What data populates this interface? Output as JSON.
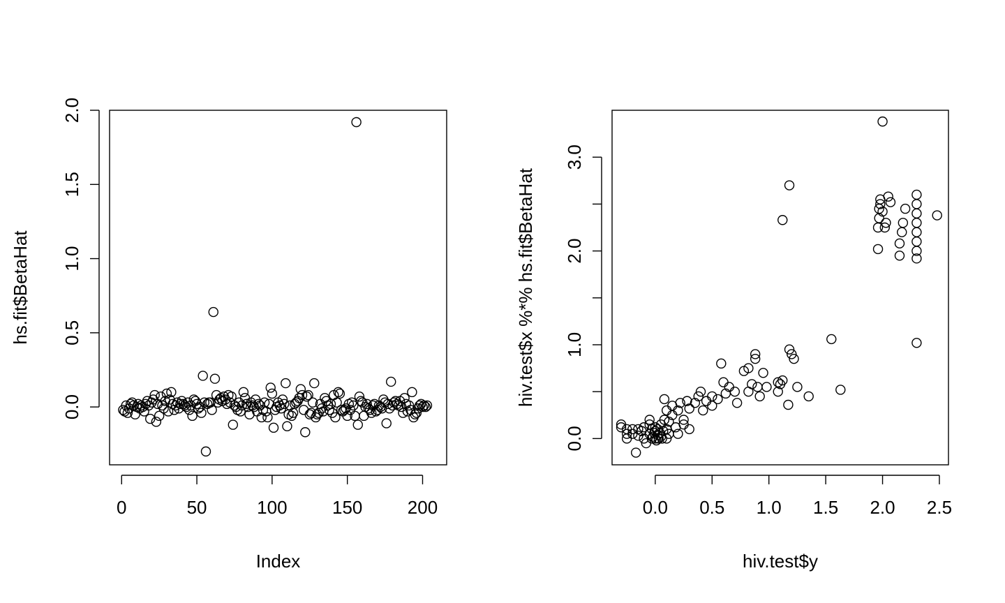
{
  "chart_data": [
    {
      "type": "scatter",
      "xlabel": "Index",
      "ylabel": "hs.fit$BetaHat",
      "xlim": [
        -8,
        216
      ],
      "ylim": [
        -0.39,
        2.0
      ],
      "xticks": [
        0,
        50,
        100,
        150,
        200
      ],
      "xtick_labels": [
        "0",
        "50",
        "100",
        "150",
        "200"
      ],
      "yticks": [
        0.0,
        0.5,
        1.0,
        1.5,
        2.0
      ],
      "ytick_labels": [
        "0.0",
        "0.5",
        "1.0",
        "1.5",
        "2.0"
      ],
      "marker": "open-circle",
      "grid": false,
      "points": [
        [
          1,
          -0.02
        ],
        [
          2,
          -0.03
        ],
        [
          3,
          0.01
        ],
        [
          4,
          -0.04
        ],
        [
          5,
          -0.01
        ],
        [
          6,
          0.02
        ],
        [
          7,
          0.03
        ],
        [
          8,
          0.01
        ],
        [
          9,
          -0.05
        ],
        [
          10,
          0.0
        ],
        [
          11,
          0.02
        ],
        [
          12,
          -0.01
        ],
        [
          13,
          0.01
        ],
        [
          14,
          0.0
        ],
        [
          15,
          -0.03
        ],
        [
          16,
          0.02
        ],
        [
          17,
          0.04
        ],
        [
          18,
          0.01
        ],
        [
          19,
          -0.08
        ],
        [
          20,
          0.03
        ],
        [
          21,
          0.05
        ],
        [
          22,
          0.08
        ],
        [
          23,
          -0.1
        ],
        [
          24,
          0.02
        ],
        [
          25,
          -0.06
        ],
        [
          26,
          0.07
        ],
        [
          27,
          0.01
        ],
        [
          28,
          -0.01
        ],
        [
          29,
          0.04
        ],
        [
          30,
          0.09
        ],
        [
          31,
          -0.03
        ],
        [
          32,
          0.05
        ],
        [
          33,
          0.1
        ],
        [
          34,
          0.02
        ],
        [
          35,
          -0.02
        ],
        [
          36,
          0.01
        ],
        [
          37,
          0.03
        ],
        [
          38,
          -0.01
        ],
        [
          39,
          0.02
        ],
        [
          40,
          0.04
        ],
        [
          41,
          0.02
        ],
        [
          42,
          0.01
        ],
        [
          43,
          0.0
        ],
        [
          44,
          0.03
        ],
        [
          45,
          -0.02
        ],
        [
          46,
          0.01
        ],
        [
          47,
          -0.06
        ],
        [
          48,
          0.05
        ],
        [
          49,
          0.04
        ],
        [
          50,
          0.02
        ],
        [
          51,
          -0.01
        ],
        [
          52,
          0.0
        ],
        [
          53,
          -0.04
        ],
        [
          54,
          0.21
        ],
        [
          55,
          0.03
        ],
        [
          56,
          -0.3
        ],
        [
          57,
          0.02
        ],
        [
          58,
          0.03
        ],
        [
          59,
          0.03
        ],
        [
          60,
          -0.02
        ],
        [
          61,
          0.64
        ],
        [
          62,
          0.19
        ],
        [
          63,
          0.08
        ],
        [
          64,
          0.03
        ],
        [
          65,
          0.05
        ],
        [
          66,
          0.06
        ],
        [
          67,
          0.04
        ],
        [
          68,
          0.07
        ],
        [
          69,
          0.05
        ],
        [
          70,
          0.02
        ],
        [
          71,
          0.08
        ],
        [
          72,
          0.03
        ],
        [
          73,
          0.07
        ],
        [
          74,
          -0.12
        ],
        [
          75,
          0.01
        ],
        [
          76,
          0.0
        ],
        [
          77,
          -0.02
        ],
        [
          78,
          0.03
        ],
        [
          79,
          -0.03
        ],
        [
          80,
          0.01
        ],
        [
          81,
          0.1
        ],
        [
          82,
          0.06
        ],
        [
          83,
          0.02
        ],
        [
          84,
          0.0
        ],
        [
          85,
          -0.05
        ],
        [
          86,
          0.03
        ],
        [
          87,
          0.01
        ],
        [
          88,
          0.0
        ],
        [
          89,
          0.05
        ],
        [
          90,
          -0.03
        ],
        [
          91,
          0.02
        ],
        [
          92,
          0.01
        ],
        [
          93,
          -0.07
        ],
        [
          94,
          -0.02
        ],
        [
          95,
          0.03
        ],
        [
          96,
          -0.03
        ],
        [
          97,
          -0.07
        ],
        [
          98,
          0.02
        ],
        [
          99,
          0.13
        ],
        [
          100,
          0.09
        ],
        [
          101,
          -0.14
        ],
        [
          102,
          -0.02
        ],
        [
          103,
          0.0
        ],
        [
          104,
          0.03
        ],
        [
          105,
          0.01
        ],
        [
          106,
          -0.01
        ],
        [
          107,
          0.05
        ],
        [
          108,
          0.02
        ],
        [
          109,
          0.16
        ],
        [
          110,
          -0.13
        ],
        [
          111,
          -0.05
        ],
        [
          112,
          0.01
        ],
        [
          113,
          -0.06
        ],
        [
          114,
          -0.04
        ],
        [
          115,
          0.02
        ],
        [
          116,
          0.03
        ],
        [
          117,
          0.04
        ],
        [
          118,
          0.06
        ],
        [
          119,
          0.12
        ],
        [
          120,
          0.08
        ],
        [
          121,
          -0.02
        ],
        [
          122,
          -0.17
        ],
        [
          123,
          0.07
        ],
        [
          124,
          0.08
        ],
        [
          125,
          -0.05
        ],
        [
          126,
          -0.04
        ],
        [
          127,
          0.03
        ],
        [
          128,
          0.16
        ],
        [
          129,
          -0.07
        ],
        [
          130,
          -0.05
        ],
        [
          131,
          -0.04
        ],
        [
          132,
          0.02
        ],
        [
          133,
          -0.01
        ],
        [
          134,
          -0.03
        ],
        [
          135,
          0.06
        ],
        [
          136,
          0.04
        ],
        [
          137,
          0.01
        ],
        [
          138,
          -0.02
        ],
        [
          139,
          0.02
        ],
        [
          140,
          -0.04
        ],
        [
          141,
          0.08
        ],
        [
          142,
          -0.07
        ],
        [
          143,
          0.03
        ],
        [
          144,
          0.1
        ],
        [
          145,
          0.09
        ],
        [
          146,
          -0.02
        ],
        [
          147,
          -0.03
        ],
        [
          148,
          -0.02
        ],
        [
          149,
          -0.01
        ],
        [
          150,
          -0.06
        ],
        [
          151,
          0.02
        ],
        [
          152,
          -0.02
        ],
        [
          153,
          0.03
        ],
        [
          154,
          0.01
        ],
        [
          155,
          -0.06
        ],
        [
          156,
          1.92
        ],
        [
          157,
          -0.12
        ],
        [
          158,
          0.07
        ],
        [
          159,
          0.04
        ],
        [
          160,
          0.03
        ],
        [
          161,
          -0.06
        ],
        [
          162,
          0.0
        ],
        [
          163,
          0.02
        ],
        [
          164,
          -0.01
        ],
        [
          165,
          -0.02
        ],
        [
          166,
          -0.04
        ],
        [
          167,
          0.01
        ],
        [
          168,
          0.02
        ],
        [
          169,
          -0.03
        ],
        [
          170,
          -0.02
        ],
        [
          171,
          0.01
        ],
        [
          172,
          0.0
        ],
        [
          173,
          -0.01
        ],
        [
          174,
          0.05
        ],
        [
          175,
          0.03
        ],
        [
          176,
          -0.11
        ],
        [
          177,
          0.02
        ],
        [
          178,
          -0.01
        ],
        [
          179,
          0.17
        ],
        [
          180,
          0.01
        ],
        [
          181,
          0.03
        ],
        [
          182,
          0.04
        ],
        [
          183,
          0.02
        ],
        [
          184,
          0.01
        ],
        [
          185,
          0.04
        ],
        [
          186,
          0.0
        ],
        [
          187,
          -0.04
        ],
        [
          188,
          0.06
        ],
        [
          189,
          0.02
        ],
        [
          190,
          -0.03
        ],
        [
          191,
          0.01
        ],
        [
          192,
          -0.02
        ],
        [
          193,
          0.1
        ],
        [
          194,
          -0.07
        ],
        [
          195,
          -0.05
        ],
        [
          196,
          -0.04
        ],
        [
          197,
          -0.01
        ],
        [
          198,
          0.01
        ],
        [
          199,
          0.02
        ],
        [
          200,
          0.0
        ],
        [
          201,
          0.01
        ],
        [
          202,
          0.0
        ],
        [
          203,
          0.01
        ]
      ]
    },
    {
      "type": "scatter",
      "xlabel": "hiv.test$y",
      "ylabel": "hiv.test$x %*% hs.fit$BetaHat",
      "xlim": [
        -0.38,
        2.58
      ],
      "ylim": [
        -0.28,
        3.5
      ],
      "xticks": [
        0.0,
        0.5,
        1.0,
        1.5,
        2.0,
        2.5
      ],
      "xtick_labels": [
        "0.0",
        "0.5",
        "1.0",
        "1.5",
        "2.0",
        "2.5"
      ],
      "yticks": [
        0.0,
        1.0,
        2.0,
        3.0
      ],
      "ytick_labels": [
        "0.0",
        "1.0",
        "2.0",
        "3.0"
      ],
      "minor_yticks": [
        0.5,
        1.5,
        2.5
      ],
      "marker": "open-circle",
      "grid": false,
      "points": [
        [
          -0.3,
          0.12
        ],
        [
          -0.3,
          0.15
        ],
        [
          -0.25,
          0.0
        ],
        [
          -0.25,
          0.05
        ],
        [
          -0.25,
          0.1
        ],
        [
          -0.2,
          0.05
        ],
        [
          -0.2,
          0.1
        ],
        [
          -0.17,
          -0.15
        ],
        [
          -0.15,
          0.03
        ],
        [
          -0.15,
          0.1
        ],
        [
          -0.12,
          0.08
        ],
        [
          -0.1,
          0.0
        ],
        [
          -0.1,
          0.12
        ],
        [
          -0.08,
          -0.05
        ],
        [
          -0.05,
          0.05
        ],
        [
          -0.05,
          0.15
        ],
        [
          -0.05,
          0.2
        ],
        [
          -0.03,
          0.0
        ],
        [
          -0.03,
          0.1
        ],
        [
          -0.02,
          0.02
        ],
        [
          -0.01,
          0.06
        ],
        [
          0.0,
          0.0
        ],
        [
          0.0,
          0.08
        ],
        [
          0.0,
          0.12
        ],
        [
          0.01,
          -0.02
        ],
        [
          0.02,
          0.04
        ],
        [
          0.02,
          0.1
        ],
        [
          0.03,
          0.0
        ],
        [
          0.04,
          0.06
        ],
        [
          0.05,
          0.02
        ],
        [
          0.05,
          0.15
        ],
        [
          0.06,
          0.0
        ],
        [
          0.07,
          0.08
        ],
        [
          0.08,
          0.2
        ],
        [
          0.08,
          0.42
        ],
        [
          0.1,
          0.0
        ],
        [
          0.1,
          0.1
        ],
        [
          0.1,
          0.3
        ],
        [
          0.12,
          0.05
        ],
        [
          0.12,
          0.18
        ],
        [
          0.15,
          0.25
        ],
        [
          0.15,
          0.35
        ],
        [
          0.18,
          0.12
        ],
        [
          0.2,
          0.3
        ],
        [
          0.2,
          0.05
        ],
        [
          0.22,
          0.38
        ],
        [
          0.25,
          0.2
        ],
        [
          0.25,
          0.15
        ],
        [
          0.28,
          0.4
        ],
        [
          0.3,
          0.32
        ],
        [
          0.3,
          0.1
        ],
        [
          0.35,
          0.38
        ],
        [
          0.38,
          0.45
        ],
        [
          0.4,
          0.5
        ],
        [
          0.42,
          0.3
        ],
        [
          0.45,
          0.4
        ],
        [
          0.5,
          0.45
        ],
        [
          0.5,
          0.35
        ],
        [
          0.55,
          0.42
        ],
        [
          0.58,
          0.8
        ],
        [
          0.6,
          0.6
        ],
        [
          0.62,
          0.48
        ],
        [
          0.65,
          0.55
        ],
        [
          0.7,
          0.5
        ],
        [
          0.72,
          0.38
        ],
        [
          0.78,
          0.72
        ],
        [
          0.82,
          0.75
        ],
        [
          0.82,
          0.5
        ],
        [
          0.85,
          0.58
        ],
        [
          0.88,
          0.9
        ],
        [
          0.88,
          0.85
        ],
        [
          0.9,
          0.55
        ],
        [
          0.92,
          0.45
        ],
        [
          0.95,
          0.7
        ],
        [
          0.98,
          0.55
        ],
        [
          1.08,
          0.6
        ],
        [
          1.08,
          0.5
        ],
        [
          1.1,
          0.58
        ],
        [
          1.12,
          2.33
        ],
        [
          1.12,
          0.62
        ],
        [
          1.17,
          0.36
        ],
        [
          1.18,
          0.95
        ],
        [
          1.18,
          2.7
        ],
        [
          1.2,
          0.9
        ],
        [
          1.22,
          0.85
        ],
        [
          1.25,
          0.55
        ],
        [
          1.35,
          0.45
        ],
        [
          1.55,
          1.06
        ],
        [
          1.63,
          0.52
        ],
        [
          2.0,
          3.38
        ],
        [
          1.96,
          2.02
        ],
        [
          1.96,
          2.25
        ],
        [
          1.97,
          2.35
        ],
        [
          1.97,
          2.45
        ],
        [
          1.98,
          2.5
        ],
        [
          1.98,
          2.55
        ],
        [
          2.0,
          2.42
        ],
        [
          2.02,
          2.25
        ],
        [
          2.03,
          2.3
        ],
        [
          2.05,
          2.58
        ],
        [
          2.07,
          2.52
        ],
        [
          2.15,
          1.95
        ],
        [
          2.15,
          2.08
        ],
        [
          2.17,
          2.2
        ],
        [
          2.18,
          2.3
        ],
        [
          2.2,
          2.45
        ],
        [
          2.3,
          1.02
        ],
        [
          2.3,
          1.92
        ],
        [
          2.3,
          2.0
        ],
        [
          2.3,
          2.1
        ],
        [
          2.3,
          2.2
        ],
        [
          2.3,
          2.3
        ],
        [
          2.3,
          2.4
        ],
        [
          2.3,
          2.5
        ],
        [
          2.3,
          2.6
        ],
        [
          2.48,
          2.38
        ]
      ]
    }
  ]
}
